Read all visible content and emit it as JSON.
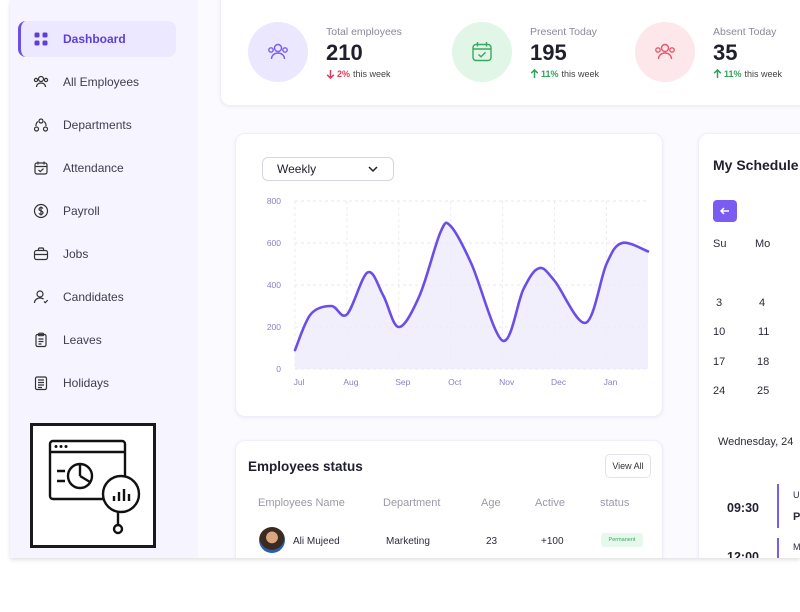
{
  "sidebar": {
    "items": [
      {
        "label": "Dashboard",
        "icon": "grid-icon"
      },
      {
        "label": "All Employees",
        "icon": "users-icon"
      },
      {
        "label": "Departments",
        "icon": "departments-icon"
      },
      {
        "label": "Attendance",
        "icon": "calendar-check-icon"
      },
      {
        "label": "Payroll",
        "icon": "dollar-icon"
      },
      {
        "label": "Jobs",
        "icon": "briefcase-icon"
      },
      {
        "label": "Candidates",
        "icon": "candidates-icon"
      },
      {
        "label": "Leaves",
        "icon": "clipboard-icon"
      },
      {
        "label": "Holidays",
        "icon": "holiday-icon"
      }
    ]
  },
  "stats": [
    {
      "label": "Total employees",
      "value": "210",
      "change": "2%",
      "period": "this week",
      "direction": "down",
      "color": "#e23b5a",
      "icon": "users-icon"
    },
    {
      "label": "Present Today",
      "value": "195",
      "change": "11%",
      "period": "this week",
      "direction": "up",
      "color": "#2fa35c",
      "icon": "calendar-check-icon"
    },
    {
      "label": "Absent Today",
      "value": "35",
      "change": "11%",
      "period": "this week",
      "direction": "up",
      "color": "#2fa35c",
      "icon": "users-icon"
    }
  ],
  "chart": {
    "range_label": "Weekly"
  },
  "chart_data": {
    "type": "area",
    "categories": [
      "Jul",
      "Aug",
      "Sep",
      "Oct",
      "Nov",
      "Dec",
      "Jan"
    ],
    "x": [
      0,
      0.3,
      0.7,
      1.0,
      1.4,
      1.7,
      2.0,
      2.4,
      2.8,
      3.0,
      3.4,
      4.0,
      4.4,
      4.7,
      5.0,
      5.6,
      6.0,
      6.3,
      6.8
    ],
    "values": [
      90,
      260,
      300,
      260,
      460,
      350,
      200,
      350,
      650,
      680,
      500,
      135,
      380,
      480,
      420,
      220,
      500,
      600,
      560
    ],
    "ylim": [
      0,
      800
    ],
    "yticks": [
      "0",
      "200",
      "400",
      "600",
      "800"
    ],
    "grid": true,
    "color": "#6c4ee6"
  },
  "schedule": {
    "title": "My Schedule",
    "days": [
      "Su",
      "Mo"
    ],
    "rows": [
      [
        "3",
        "4"
      ],
      [
        "10",
        "11"
      ],
      [
        "17",
        "18"
      ],
      [
        "24",
        "25"
      ]
    ],
    "date_label": "Wednesday, 24",
    "events": [
      {
        "time": "09:30",
        "line1": "U",
        "line2": "P"
      },
      {
        "time": "12:00",
        "line1": "M",
        "line2": ""
      }
    ]
  },
  "employees": {
    "title": "Employees status",
    "view_all": "View All",
    "columns": [
      "Employees Name",
      "Department",
      "Age",
      "Active",
      "status"
    ],
    "rows": [
      {
        "name": "Ali Mujeed",
        "department": "Marketing",
        "age": "23",
        "active": "+100",
        "status": "Permanent"
      }
    ]
  }
}
